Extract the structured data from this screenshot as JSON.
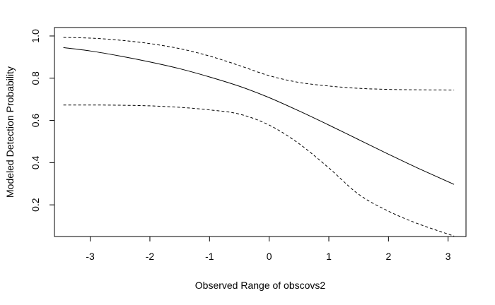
{
  "chart_data": {
    "type": "line",
    "title": "",
    "xlabel": "Observed Range of obscovs2",
    "ylabel": "Modeled Detection Probability",
    "xlim": [
      -3.6,
      3.3
    ],
    "ylim": [
      0.05,
      1.04
    ],
    "xticks": [
      -3,
      -2,
      -1,
      0,
      1,
      2,
      3
    ],
    "yticks": [
      0.2,
      0.4,
      0.6,
      0.8,
      1.0
    ],
    "ytick_labels": [
      "0.2",
      "0.4",
      "0.6",
      "0.8",
      "1.0"
    ],
    "grid": false,
    "legend": "none",
    "x": [
      -3.45,
      -3.0,
      -2.5,
      -2.0,
      -1.5,
      -1.0,
      -0.5,
      0.0,
      0.5,
      1.0,
      1.5,
      2.0,
      2.5,
      3.1
    ],
    "series": [
      {
        "style": "solid",
        "values": [
          0.945,
          0.929,
          0.905,
          0.877,
          0.845,
          0.806,
          0.762,
          0.708,
          0.645,
          0.578,
          0.509,
          0.44,
          0.373,
          0.297
        ]
      },
      {
        "style": "dashed",
        "values": [
          0.993,
          0.99,
          0.98,
          0.964,
          0.94,
          0.905,
          0.86,
          0.812,
          0.78,
          0.763,
          0.752,
          0.747,
          0.745,
          0.744
        ]
      },
      {
        "style": "dashed",
        "values": [
          0.673,
          0.673,
          0.672,
          0.669,
          0.662,
          0.65,
          0.63,
          0.578,
          0.49,
          0.375,
          0.25,
          0.17,
          0.11,
          0.052
        ]
      }
    ]
  }
}
